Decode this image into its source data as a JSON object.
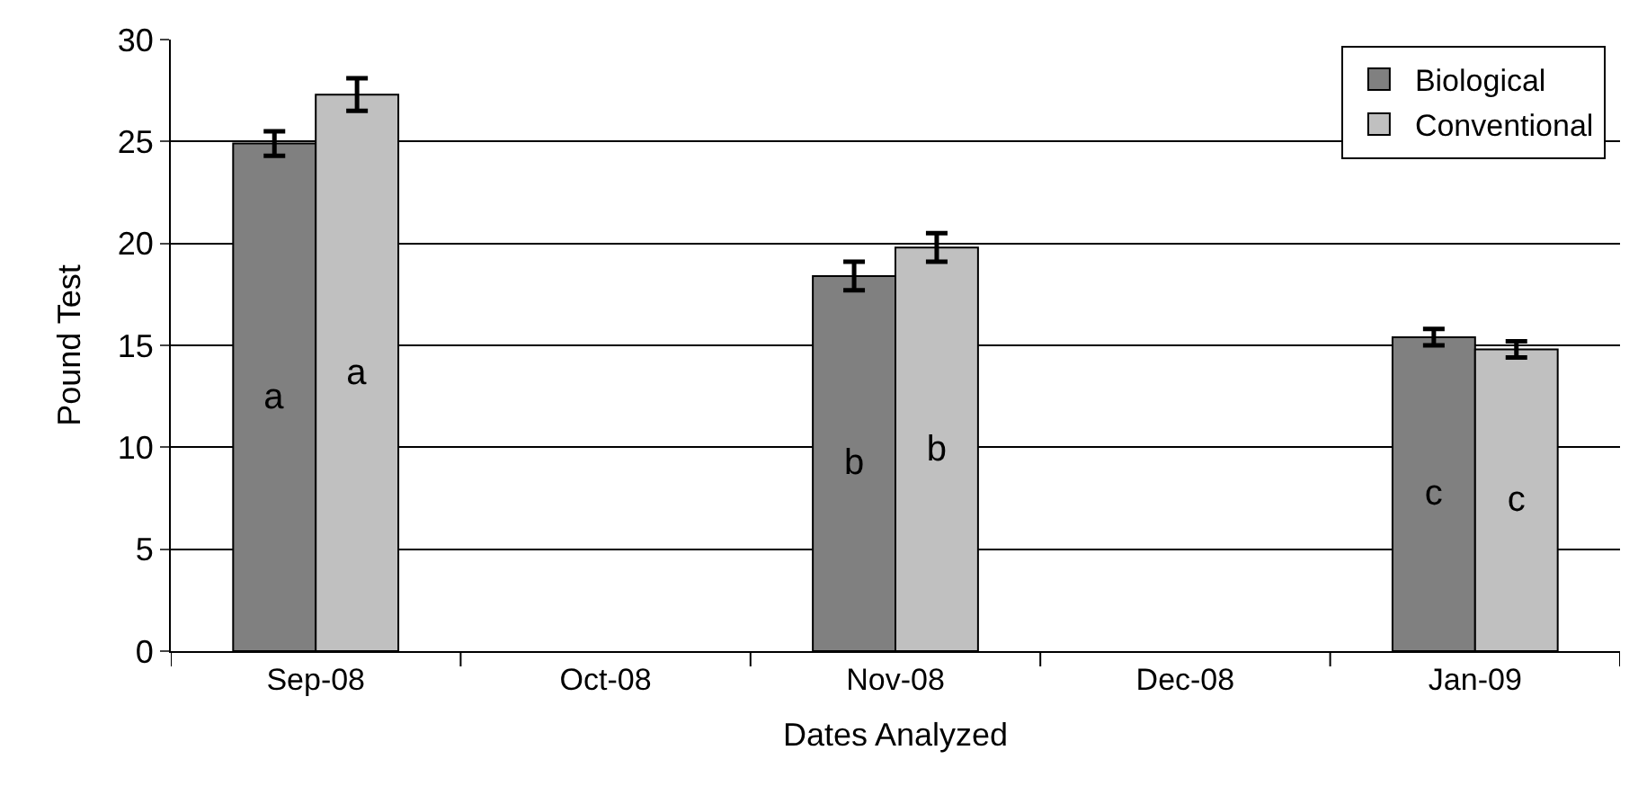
{
  "chart_data": {
    "type": "bar",
    "xlabel": "Dates Analyzed",
    "ylabel": "Pound Test",
    "categories": [
      "Sep-08",
      "Oct-08",
      "Nov-08",
      "Dec-08",
      "Jan-09"
    ],
    "series": [
      {
        "name": "Biological",
        "color": "#808080",
        "values": [
          24.9,
          null,
          18.4,
          null,
          15.4
        ],
        "errors": [
          0.6,
          null,
          0.7,
          null,
          0.4
        ],
        "value_labels": [
          "a",
          null,
          "b",
          null,
          "c"
        ]
      },
      {
        "name": "Conventional",
        "color": "#c0c0c0",
        "values": [
          27.3,
          null,
          19.8,
          null,
          14.8
        ],
        "errors": [
          0.8,
          null,
          0.7,
          null,
          0.4
        ],
        "value_labels": [
          "a",
          null,
          "b",
          null,
          "c"
        ]
      }
    ],
    "ylim": [
      0,
      30
    ],
    "yticks": [
      0,
      5,
      10,
      15,
      20,
      25,
      30
    ],
    "grid": "y",
    "legend": "top right"
  }
}
